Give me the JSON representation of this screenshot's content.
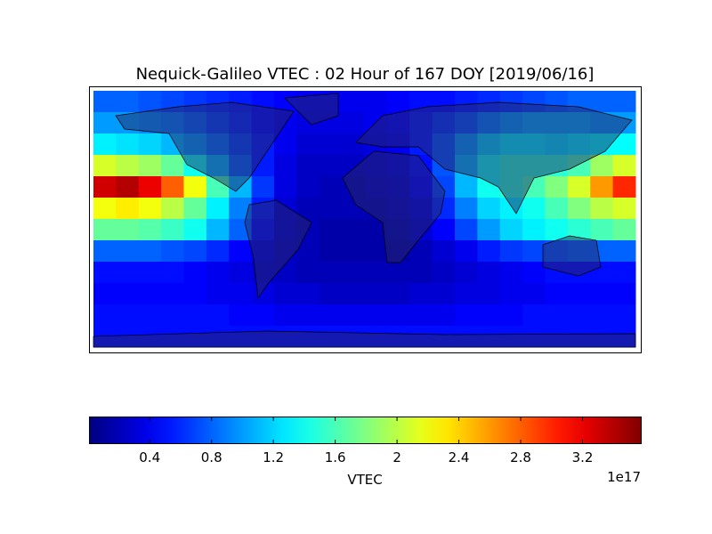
{
  "chart_data": {
    "type": "heatmap",
    "title": "Nequick-Galileo VTEC : 02 Hour of 167 DOY [2019/06/16]",
    "colormap": "jet",
    "values": [
      [
        0.8,
        0.8,
        0.75,
        0.7,
        0.65,
        0.6,
        0.55,
        0.5,
        0.45,
        0.4,
        0.4,
        0.4,
        0.4,
        0.45,
        0.5,
        0.5,
        0.55,
        0.6,
        0.65,
        0.7,
        0.75,
        0.8,
        0.8,
        0.8
      ],
      [
        1.0,
        1.0,
        0.95,
        0.9,
        0.8,
        0.7,
        0.6,
        0.5,
        0.4,
        0.35,
        0.35,
        0.35,
        0.4,
        0.45,
        0.55,
        0.65,
        0.75,
        0.9,
        1.0,
        1.05,
        1.05,
        1.05,
        1.0,
        1.0
      ],
      [
        1.3,
        1.25,
        1.2,
        1.1,
        1.0,
        0.85,
        0.7,
        0.55,
        0.4,
        0.3,
        0.3,
        0.3,
        0.35,
        0.4,
        0.55,
        0.75,
        1.0,
        1.2,
        1.3,
        1.3,
        1.25,
        1.3,
        1.35,
        1.35
      ],
      [
        2.1,
        2.0,
        1.9,
        1.7,
        1.4,
        1.1,
        0.8,
        0.55,
        0.35,
        0.25,
        0.25,
        0.25,
        0.3,
        0.35,
        0.5,
        0.75,
        1.1,
        1.4,
        1.5,
        1.5,
        1.5,
        1.6,
        1.9,
        2.1
      ],
      [
        3.3,
        3.4,
        3.2,
        2.8,
        2.2,
        1.6,
        1.1,
        0.65,
        0.35,
        0.25,
        0.2,
        0.2,
        0.25,
        0.3,
        0.45,
        0.7,
        1.1,
        1.4,
        1.5,
        1.6,
        1.8,
        2.1,
        2.6,
        3.0
      ],
      [
        2.2,
        2.3,
        2.2,
        2.0,
        1.7,
        1.3,
        0.9,
        0.55,
        0.3,
        0.2,
        0.2,
        0.2,
        0.2,
        0.25,
        0.35,
        0.6,
        0.9,
        1.2,
        1.3,
        1.4,
        1.6,
        1.8,
        2.0,
        2.1
      ],
      [
        1.7,
        1.7,
        1.65,
        1.55,
        1.4,
        1.1,
        0.8,
        0.5,
        0.3,
        0.2,
        0.15,
        0.15,
        0.15,
        0.2,
        0.3,
        0.45,
        0.7,
        1.0,
        1.2,
        1.3,
        1.4,
        1.5,
        1.6,
        1.7
      ],
      [
        0.8,
        0.8,
        0.8,
        0.75,
        0.7,
        0.6,
        0.45,
        0.35,
        0.25,
        0.2,
        0.15,
        0.15,
        0.15,
        0.15,
        0.2,
        0.3,
        0.4,
        0.55,
        0.65,
        0.7,
        0.75,
        0.8,
        0.8,
        0.8
      ],
      [
        0.5,
        0.5,
        0.5,
        0.5,
        0.45,
        0.4,
        0.35,
        0.3,
        0.25,
        0.2,
        0.2,
        0.2,
        0.2,
        0.2,
        0.2,
        0.25,
        0.3,
        0.35,
        0.4,
        0.45,
        0.5,
        0.5,
        0.5,
        0.5
      ],
      [
        0.45,
        0.45,
        0.45,
        0.45,
        0.45,
        0.4,
        0.4,
        0.35,
        0.3,
        0.3,
        0.25,
        0.25,
        0.25,
        0.25,
        0.3,
        0.3,
        0.35,
        0.35,
        0.4,
        0.4,
        0.45,
        0.45,
        0.45,
        0.45
      ],
      [
        0.5,
        0.5,
        0.5,
        0.5,
        0.5,
        0.5,
        0.45,
        0.45,
        0.4,
        0.4,
        0.4,
        0.4,
        0.4,
        0.4,
        0.4,
        0.4,
        0.45,
        0.45,
        0.45,
        0.5,
        0.5,
        0.5,
        0.5,
        0.5
      ],
      [
        0.5,
        0.5,
        0.5,
        0.5,
        0.5,
        0.5,
        0.5,
        0.5,
        0.5,
        0.5,
        0.5,
        0.5,
        0.5,
        0.5,
        0.5,
        0.5,
        0.5,
        0.5,
        0.5,
        0.5,
        0.5,
        0.5,
        0.5,
        0.5
      ]
    ],
    "clim": [
      0.01,
      3.58
    ],
    "colorbar_ticks": [
      0.4,
      0.8,
      1.2,
      1.6,
      2.0,
      2.4,
      2.8,
      3.2
    ],
    "colorbar_label": "VTEC",
    "colorbar_offset": "1e17"
  }
}
